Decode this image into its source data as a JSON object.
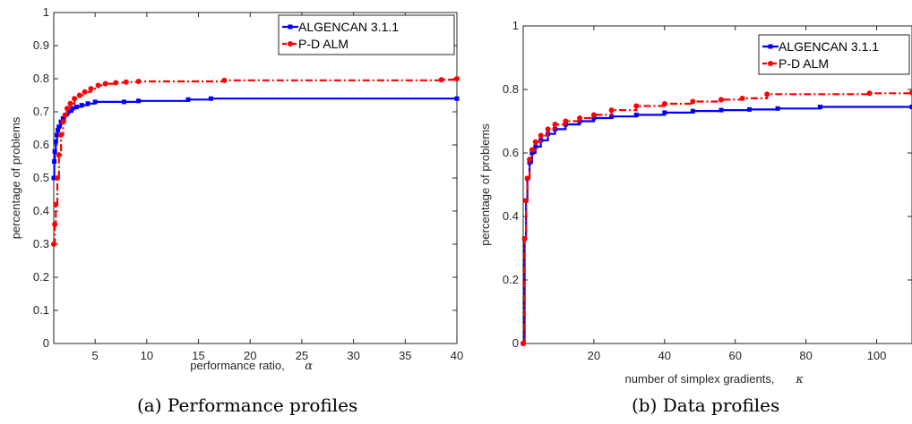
{
  "chart_data": [
    {
      "type": "line",
      "title": "",
      "caption": "(a) Performance profiles",
      "xlabel": "performance ratio,",
      "xlabel_symbol": "α",
      "ylabel": "percentage of problems",
      "xlim": [
        1,
        40
      ],
      "ylim": [
        0,
        1
      ],
      "xticks": [
        5,
        10,
        15,
        20,
        25,
        30,
        35,
        40
      ],
      "yticks": [
        0,
        0.1,
        0.2,
        0.3,
        0.4,
        0.5,
        0.6,
        0.7,
        0.8,
        0.9,
        1
      ],
      "ytick_labels": [
        "0",
        "0.1",
        "0.2",
        "0.3",
        "0.4",
        "0.5",
        "0.6",
        "0.7",
        "0.8",
        "0.9",
        "1"
      ],
      "grid": false,
      "legend": "top-right",
      "series": [
        {
          "name": "ALGENCAN 3.1.1",
          "color": "#0000ff",
          "style": "solid",
          "marker": "square",
          "x": [
            1.0,
            1.05,
            1.1,
            1.2,
            1.3,
            1.4,
            1.5,
            1.7,
            1.9,
            2.1,
            2.4,
            2.8,
            3.2,
            3.7,
            4.3,
            5.0,
            7.8,
            9.2,
            14.0,
            16.2,
            40
          ],
          "y": [
            0.5,
            0.55,
            0.58,
            0.61,
            0.63,
            0.645,
            0.655,
            0.67,
            0.68,
            0.69,
            0.7,
            0.71,
            0.715,
            0.72,
            0.725,
            0.73,
            0.73,
            0.733,
            0.737,
            0.74,
            0.74
          ]
        },
        {
          "name": "P-D ALM",
          "color": "#ff0000",
          "style": "dashdot",
          "marker": "circle",
          "x": [
            1.0,
            1.1,
            1.2,
            1.35,
            1.5,
            1.7,
            1.9,
            2.1,
            2.3,
            2.6,
            3.0,
            3.5,
            4.0,
            4.6,
            5.3,
            6.0,
            7.0,
            8.0,
            9.2,
            17.5,
            38.5,
            40
          ],
          "y": [
            0.3,
            0.36,
            0.42,
            0.5,
            0.57,
            0.63,
            0.67,
            0.69,
            0.71,
            0.725,
            0.74,
            0.75,
            0.76,
            0.77,
            0.78,
            0.785,
            0.788,
            0.79,
            0.792,
            0.795,
            0.797,
            0.8
          ]
        }
      ]
    },
    {
      "type": "line",
      "title": "",
      "caption": "(b) Data profiles",
      "xlabel": "number of simplex gradients,",
      "xlabel_symbol": "κ",
      "ylabel": "percentage of problems",
      "xlim": [
        0,
        110
      ],
      "ylim": [
        0,
        1
      ],
      "xticks": [
        20,
        40,
        60,
        80,
        100
      ],
      "yticks": [
        0,
        0.2,
        0.4,
        0.6,
        0.8,
        1
      ],
      "ytick_labels": [
        "0",
        "0.2",
        "0.4",
        "0.6",
        "0.8",
        "1"
      ],
      "grid": false,
      "legend": "top-right",
      "series": [
        {
          "name": "ALGENCAN 3.1.1",
          "color": "#0000ff",
          "style": "solid",
          "marker": "square",
          "x": [
            0,
            0.4,
            0.8,
            1.2,
            1.8,
            2.5,
            3.5,
            5,
            7,
            9,
            12,
            16,
            20,
            25,
            32,
            40,
            48,
            56,
            64,
            72,
            84,
            110
          ],
          "y": [
            0,
            0.33,
            0.45,
            0.52,
            0.57,
            0.6,
            0.62,
            0.64,
            0.66,
            0.675,
            0.69,
            0.7,
            0.71,
            0.715,
            0.72,
            0.727,
            0.732,
            0.735,
            0.737,
            0.74,
            0.745,
            0.745
          ]
        },
        {
          "name": "P-D ALM",
          "color": "#ff0000",
          "style": "dashdot",
          "marker": "circle",
          "x": [
            0,
            0.4,
            0.8,
            1.2,
            1.8,
            2.5,
            3.5,
            5,
            7,
            9,
            12,
            16,
            20,
            25,
            32,
            40,
            48,
            56,
            62,
            69,
            98,
            110
          ],
          "y": [
            0,
            0.33,
            0.45,
            0.52,
            0.58,
            0.61,
            0.635,
            0.655,
            0.675,
            0.69,
            0.7,
            0.71,
            0.72,
            0.735,
            0.748,
            0.755,
            0.762,
            0.768,
            0.772,
            0.785,
            0.788,
            0.79
          ]
        }
      ]
    }
  ]
}
